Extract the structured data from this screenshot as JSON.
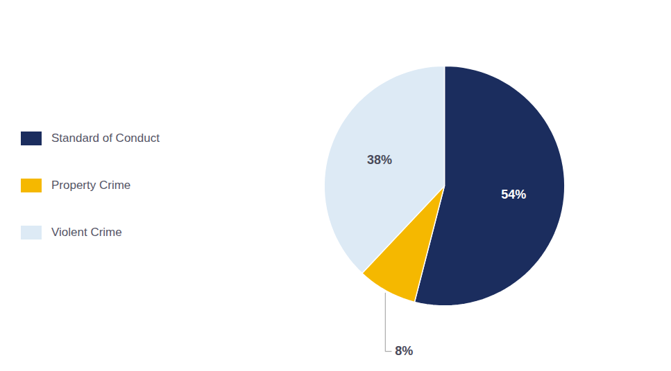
{
  "chart_data": {
    "type": "pie",
    "categories": [
      "Standard of Conduct",
      "Property Crime",
      "Violent Crime"
    ],
    "values": [
      54,
      8,
      38
    ],
    "value_labels": [
      "54%",
      "8%",
      "38%"
    ],
    "colors": [
      "#1b2d5e",
      "#f5b800",
      "#ddeaf5"
    ],
    "data_labels": true,
    "legend": "left"
  }
}
